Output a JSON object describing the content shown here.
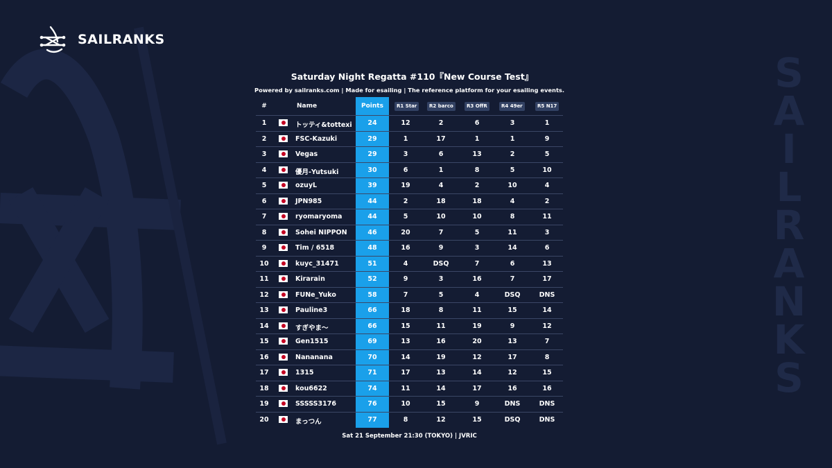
{
  "brand": {
    "name": "SAILRANKS",
    "vertical_text": [
      "S",
      "A",
      "I",
      "L",
      "R",
      "A",
      "N",
      "K",
      "S"
    ]
  },
  "event": {
    "title": "Saturday Night Regatta #110『New Course Test』",
    "subtitle": "Powered by sailranks.com | Made for esailing | The reference platform for your esailing events.",
    "footer": "Sat 21 September 21:30 (TOKYO) | JVRIC"
  },
  "table": {
    "headers": {
      "rank": "#",
      "name": "Name",
      "points": "Points"
    },
    "races": [
      "R1 Star",
      "R2 barco",
      "R3 OffR",
      "R4 49er",
      "R5 N17"
    ],
    "rows": [
      {
        "rank": "1",
        "flag": "japan-flag-icon",
        "name": "トッティ&tottexi",
        "points": "24",
        "races": [
          "12",
          "2",
          "6",
          "3",
          "1"
        ]
      },
      {
        "rank": "2",
        "flag": "japan-flag-icon",
        "name": "FSC-Kazuki",
        "points": "29",
        "races": [
          "1",
          "17",
          "1",
          "1",
          "9"
        ]
      },
      {
        "rank": "3",
        "flag": "japan-flag-icon",
        "name": "Vegas",
        "points": "29",
        "races": [
          "3",
          "6",
          "13",
          "2",
          "5"
        ]
      },
      {
        "rank": "4",
        "flag": "japan-flag-icon",
        "name": "優月-Yutsuki",
        "points": "30",
        "races": [
          "6",
          "1",
          "8",
          "5",
          "10"
        ]
      },
      {
        "rank": "5",
        "flag": "japan-flag-icon",
        "name": "ozuyL",
        "points": "39",
        "races": [
          "19",
          "4",
          "2",
          "10",
          "4"
        ]
      },
      {
        "rank": "6",
        "flag": "japan-flag-icon",
        "name": "JPN985",
        "points": "44",
        "races": [
          "2",
          "18",
          "18",
          "4",
          "2"
        ]
      },
      {
        "rank": "7",
        "flag": "japan-flag-icon",
        "name": "ryomaryoma",
        "points": "44",
        "races": [
          "5",
          "10",
          "10",
          "8",
          "11"
        ]
      },
      {
        "rank": "8",
        "flag": "japan-flag-icon",
        "name": "Sohei NIPPON",
        "points": "46",
        "races": [
          "20",
          "7",
          "5",
          "11",
          "3"
        ]
      },
      {
        "rank": "9",
        "flag": "japan-flag-icon",
        "name": "Tim / 6518",
        "points": "48",
        "races": [
          "16",
          "9",
          "3",
          "14",
          "6"
        ]
      },
      {
        "rank": "10",
        "flag": "japan-flag-icon",
        "name": "kuyc_31471",
        "points": "51",
        "races": [
          "4",
          "DSQ",
          "7",
          "6",
          "13"
        ]
      },
      {
        "rank": "11",
        "flag": "japan-flag-icon",
        "name": "Kirarain",
        "points": "52",
        "races": [
          "9",
          "3",
          "16",
          "7",
          "17"
        ]
      },
      {
        "rank": "12",
        "flag": "japan-flag-icon",
        "name": "FUNe_Yuko",
        "points": "58",
        "races": [
          "7",
          "5",
          "4",
          "DSQ",
          "DNS"
        ]
      },
      {
        "rank": "13",
        "flag": "japan-flag-icon",
        "name": "Pauline3",
        "points": "66",
        "races": [
          "18",
          "8",
          "11",
          "15",
          "14"
        ]
      },
      {
        "rank": "14",
        "flag": "japan-flag-icon",
        "name": "すぎやま～",
        "points": "66",
        "races": [
          "15",
          "11",
          "19",
          "9",
          "12"
        ]
      },
      {
        "rank": "15",
        "flag": "japan-flag-icon",
        "name": "Gen1515",
        "points": "69",
        "races": [
          "13",
          "16",
          "20",
          "13",
          "7"
        ]
      },
      {
        "rank": "16",
        "flag": "japan-flag-icon",
        "name": "Nananana",
        "points": "70",
        "races": [
          "14",
          "19",
          "12",
          "17",
          "8"
        ]
      },
      {
        "rank": "17",
        "flag": "japan-flag-icon",
        "name": "1315",
        "points": "71",
        "races": [
          "17",
          "13",
          "14",
          "12",
          "15"
        ]
      },
      {
        "rank": "18",
        "flag": "japan-flag-icon",
        "name": "kou6622",
        "points": "74",
        "races": [
          "11",
          "14",
          "17",
          "16",
          "16"
        ]
      },
      {
        "rank": "19",
        "flag": "japan-flag-icon",
        "name": "SSSSS3176",
        "points": "76",
        "races": [
          "10",
          "15",
          "9",
          "DNS",
          "DNS"
        ]
      },
      {
        "rank": "20",
        "flag": "japan-flag-icon",
        "name": "まっつん",
        "points": "77",
        "races": [
          "8",
          "12",
          "15",
          "DSQ",
          "DNS"
        ]
      }
    ]
  },
  "colors": {
    "background": "#141c33",
    "points_highlight": "#1aa0ea",
    "badge": "#324163",
    "watermark": "#1f2a48"
  }
}
